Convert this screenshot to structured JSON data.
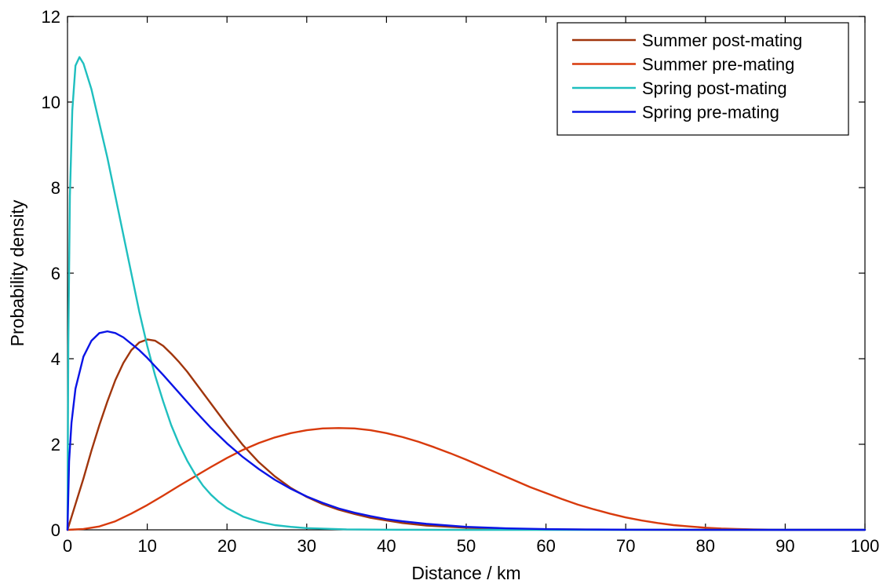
{
  "chart_data": {
    "type": "line",
    "title": "",
    "xlabel": "Distance /  km",
    "ylabel": "Probability density",
    "xlim": [
      0,
      100
    ],
    "ylim": [
      0,
      12
    ],
    "x_ticks": [
      0,
      10,
      20,
      30,
      40,
      50,
      60,
      70,
      80,
      90,
      100
    ],
    "y_ticks": [
      0,
      2,
      4,
      6,
      8,
      10,
      12
    ],
    "grid": false,
    "legend_position": "top-right",
    "series": [
      {
        "name": "Summer post-mating",
        "color": "#a0350c",
        "points": [
          [
            0,
            0
          ],
          [
            1,
            0.6
          ],
          [
            2,
            1.2
          ],
          [
            3,
            1.85
          ],
          [
            4,
            2.45
          ],
          [
            5,
            3.0
          ],
          [
            6,
            3.5
          ],
          [
            7,
            3.9
          ],
          [
            8,
            4.2
          ],
          [
            9,
            4.38
          ],
          [
            10,
            4.45
          ],
          [
            11,
            4.42
          ],
          [
            12,
            4.3
          ],
          [
            13,
            4.12
          ],
          [
            14,
            3.92
          ],
          [
            15,
            3.7
          ],
          [
            16,
            3.45
          ],
          [
            17,
            3.2
          ],
          [
            18,
            2.95
          ],
          [
            19,
            2.7
          ],
          [
            20,
            2.45
          ],
          [
            22,
            1.98
          ],
          [
            24,
            1.58
          ],
          [
            26,
            1.25
          ],
          [
            28,
            0.98
          ],
          [
            30,
            0.77
          ],
          [
            32,
            0.6
          ],
          [
            34,
            0.47
          ],
          [
            36,
            0.37
          ],
          [
            38,
            0.28
          ],
          [
            40,
            0.22
          ],
          [
            42,
            0.16
          ],
          [
            45,
            0.1
          ],
          [
            50,
            0.05
          ],
          [
            55,
            0.02
          ],
          [
            60,
            0.01
          ],
          [
            70,
            0.002
          ],
          [
            80,
            0.0
          ],
          [
            90,
            0.0
          ],
          [
            100,
            0.0
          ]
        ]
      },
      {
        "name": "Summer pre-mating",
        "color": "#d83a0c",
        "points": [
          [
            0,
            0
          ],
          [
            2,
            0.02
          ],
          [
            4,
            0.08
          ],
          [
            6,
            0.2
          ],
          [
            8,
            0.38
          ],
          [
            10,
            0.58
          ],
          [
            12,
            0.8
          ],
          [
            14,
            1.03
          ],
          [
            16,
            1.25
          ],
          [
            18,
            1.47
          ],
          [
            20,
            1.68
          ],
          [
            22,
            1.87
          ],
          [
            24,
            2.03
          ],
          [
            26,
            2.16
          ],
          [
            28,
            2.26
          ],
          [
            30,
            2.33
          ],
          [
            32,
            2.37
          ],
          [
            34,
            2.38
          ],
          [
            36,
            2.37
          ],
          [
            38,
            2.33
          ],
          [
            40,
            2.26
          ],
          [
            42,
            2.17
          ],
          [
            44,
            2.06
          ],
          [
            46,
            1.93
          ],
          [
            48,
            1.79
          ],
          [
            50,
            1.64
          ],
          [
            52,
            1.48
          ],
          [
            54,
            1.32
          ],
          [
            56,
            1.16
          ],
          [
            58,
            1.0
          ],
          [
            60,
            0.86
          ],
          [
            62,
            0.72
          ],
          [
            64,
            0.59
          ],
          [
            66,
            0.48
          ],
          [
            68,
            0.38
          ],
          [
            70,
            0.29
          ],
          [
            72,
            0.22
          ],
          [
            74,
            0.16
          ],
          [
            76,
            0.11
          ],
          [
            78,
            0.08
          ],
          [
            80,
            0.05
          ],
          [
            82,
            0.03
          ],
          [
            84,
            0.02
          ],
          [
            86,
            0.01
          ],
          [
            88,
            0.005
          ],
          [
            90,
            0.002
          ],
          [
            95,
            0.0
          ],
          [
            100,
            0.0
          ]
        ]
      },
      {
        "name": "Spring post-mating",
        "color": "#1fbfbf",
        "points": [
          [
            0,
            0
          ],
          [
            0.1,
            4.3
          ],
          [
            0.3,
            7.8
          ],
          [
            0.6,
            9.8
          ],
          [
            1.0,
            10.85
          ],
          [
            1.5,
            11.05
          ],
          [
            2,
            10.9
          ],
          [
            3,
            10.3
          ],
          [
            4,
            9.5
          ],
          [
            5,
            8.7
          ],
          [
            6,
            7.8
          ],
          [
            7,
            6.9
          ],
          [
            8,
            6.0
          ],
          [
            9,
            5.1
          ],
          [
            10,
            4.3
          ],
          [
            11,
            3.6
          ],
          [
            12,
            3.0
          ],
          [
            13,
            2.45
          ],
          [
            14,
            2.0
          ],
          [
            15,
            1.62
          ],
          [
            16,
            1.3
          ],
          [
            17,
            1.03
          ],
          [
            18,
            0.82
          ],
          [
            19,
            0.65
          ],
          [
            20,
            0.51
          ],
          [
            22,
            0.31
          ],
          [
            24,
            0.19
          ],
          [
            26,
            0.11
          ],
          [
            28,
            0.07
          ],
          [
            30,
            0.04
          ],
          [
            35,
            0.01
          ],
          [
            40,
            0.003
          ],
          [
            50,
            0.0
          ],
          [
            100,
            0.0
          ]
        ]
      },
      {
        "name": "Spring pre-mating",
        "color": "#0a14e6",
        "points": [
          [
            0,
            0
          ],
          [
            0.2,
            1.6
          ],
          [
            0.5,
            2.5
          ],
          [
            1,
            3.3
          ],
          [
            2,
            4.05
          ],
          [
            3,
            4.42
          ],
          [
            4,
            4.6
          ],
          [
            5,
            4.64
          ],
          [
            6,
            4.6
          ],
          [
            7,
            4.5
          ],
          [
            8,
            4.35
          ],
          [
            9,
            4.2
          ],
          [
            10,
            4.02
          ],
          [
            12,
            3.62
          ],
          [
            14,
            3.2
          ],
          [
            16,
            2.78
          ],
          [
            18,
            2.38
          ],
          [
            20,
            2.02
          ],
          [
            22,
            1.7
          ],
          [
            24,
            1.42
          ],
          [
            26,
            1.17
          ],
          [
            28,
            0.96
          ],
          [
            30,
            0.78
          ],
          [
            32,
            0.63
          ],
          [
            34,
            0.5
          ],
          [
            36,
            0.4
          ],
          [
            38,
            0.32
          ],
          [
            40,
            0.25
          ],
          [
            42,
            0.2
          ],
          [
            45,
            0.14
          ],
          [
            50,
            0.07
          ],
          [
            55,
            0.035
          ],
          [
            60,
            0.017
          ],
          [
            65,
            0.008
          ],
          [
            70,
            0.004
          ],
          [
            80,
            0.001
          ],
          [
            90,
            0.0
          ],
          [
            100,
            0.0
          ]
        ]
      }
    ]
  }
}
